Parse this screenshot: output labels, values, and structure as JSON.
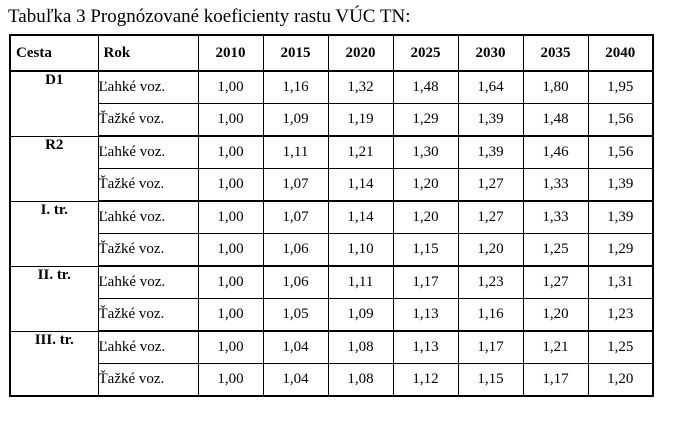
{
  "caption": "Tabuľka 3 Prognózované koeficienty rastu VÚC TN:",
  "headers": {
    "road": "Cesta",
    "vehicle": "Rok",
    "years": [
      "2010",
      "2015",
      "2020",
      "2025",
      "2030",
      "2035",
      "2040"
    ]
  },
  "groups": [
    {
      "road": "D1",
      "rows": [
        {
          "vehicle": "Ľahké voz.",
          "values": [
            "1,00",
            "1,16",
            "1,32",
            "1,48",
            "1,64",
            "1,80",
            "1,95"
          ]
        },
        {
          "vehicle": "Ťažké voz.",
          "values": [
            "1,00",
            "1,09",
            "1,19",
            "1,29",
            "1,39",
            "1,48",
            "1,56"
          ]
        }
      ]
    },
    {
      "road": "R2",
      "rows": [
        {
          "vehicle": "Ľahké voz.",
          "values": [
            "1,00",
            "1,11",
            "1,21",
            "1,30",
            "1,39",
            "1,46",
            "1,56"
          ]
        },
        {
          "vehicle": "Ťažké voz.",
          "values": [
            "1,00",
            "1,07",
            "1,14",
            "1,20",
            "1,27",
            "1,33",
            "1,39"
          ]
        }
      ]
    },
    {
      "road": "I. tr.",
      "rows": [
        {
          "vehicle": "Ľahké voz.",
          "values": [
            "1,00",
            "1,07",
            "1,14",
            "1,20",
            "1,27",
            "1,33",
            "1,39"
          ]
        },
        {
          "vehicle": "Ťažké voz.",
          "values": [
            "1,00",
            "1,06",
            "1,10",
            "1,15",
            "1,20",
            "1,25",
            "1,29"
          ]
        }
      ]
    },
    {
      "road": "II. tr.",
      "rows": [
        {
          "vehicle": "Ľahké voz.",
          "values": [
            "1,00",
            "1,06",
            "1,11",
            "1,17",
            "1,23",
            "1,27",
            "1,31"
          ]
        },
        {
          "vehicle": "Ťažké voz.",
          "values": [
            "1,00",
            "1,05",
            "1,09",
            "1,13",
            "1,16",
            "1,20",
            "1,23"
          ]
        }
      ]
    },
    {
      "road": "III. tr.",
      "rows": [
        {
          "vehicle": "Ľahké voz.",
          "values": [
            "1,00",
            "1,04",
            "1,08",
            "1,13",
            "1,17",
            "1,21",
            "1,25"
          ]
        },
        {
          "vehicle": "Ťažké voz.",
          "values": [
            "1,00",
            "1,04",
            "1,08",
            "1,12",
            "1,15",
            "1,17",
            "1,20"
          ]
        }
      ]
    }
  ]
}
